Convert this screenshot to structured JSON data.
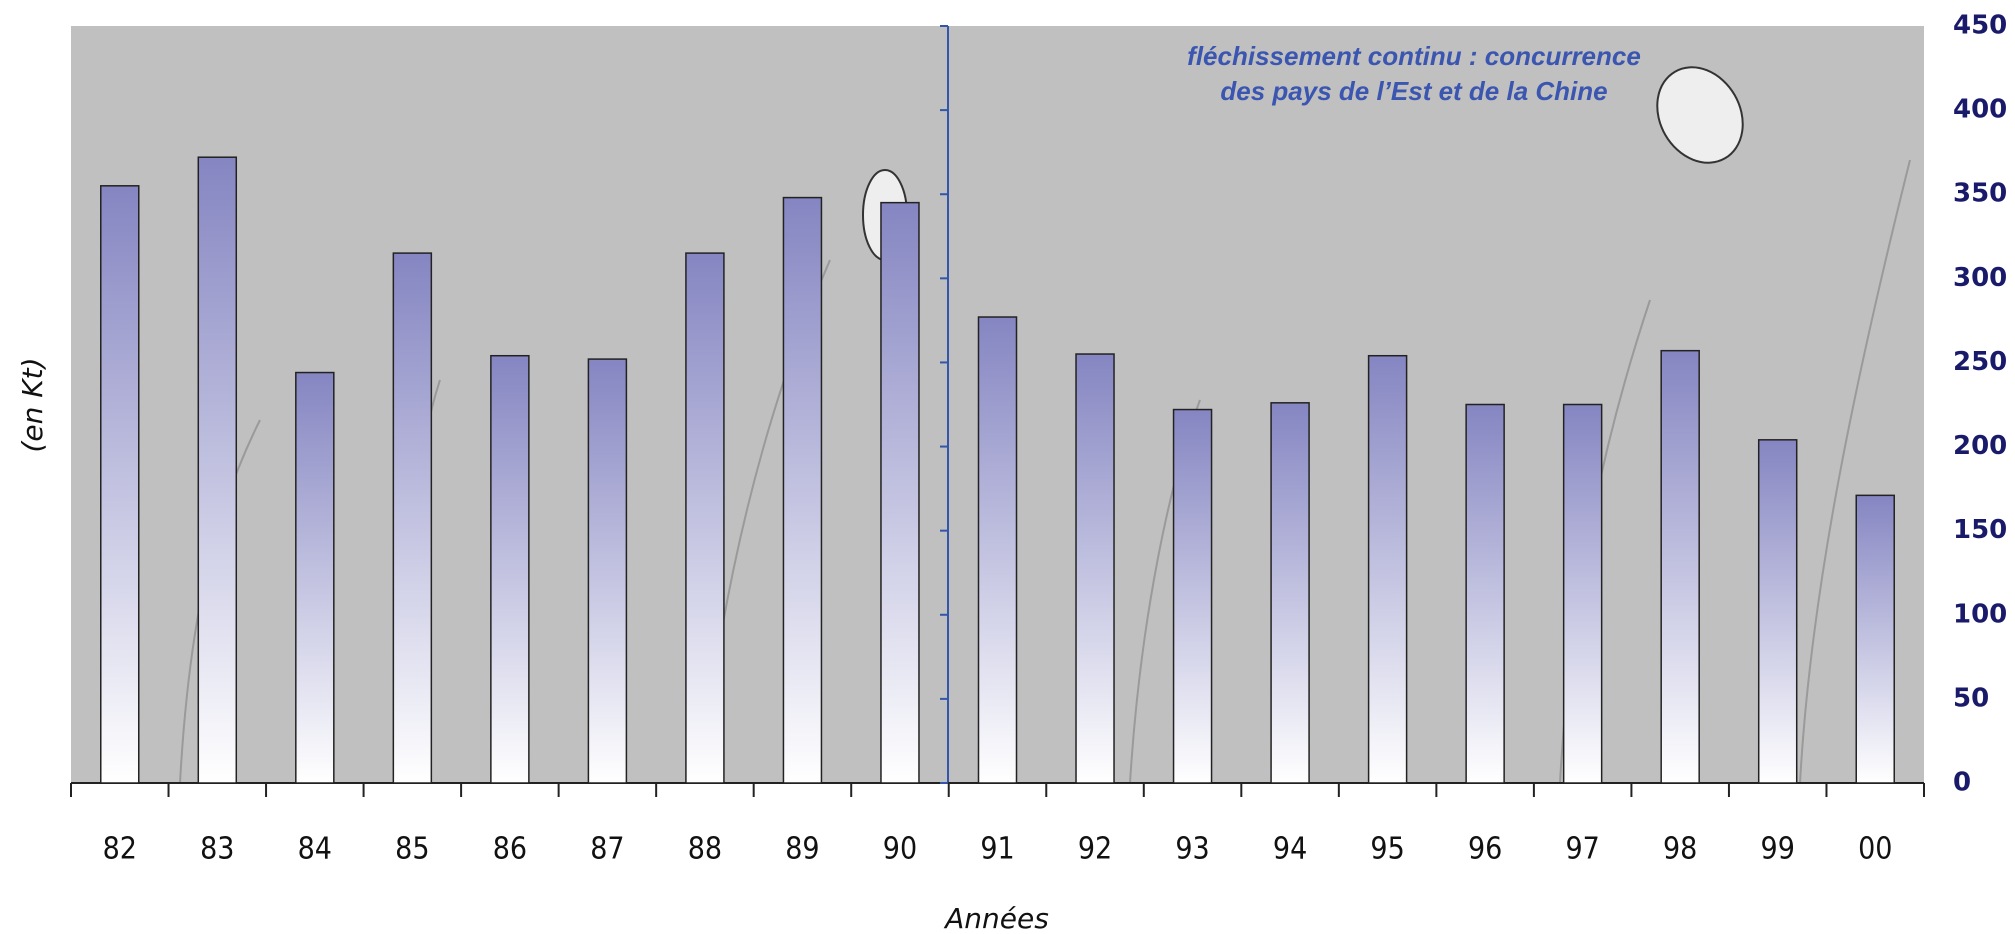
{
  "chart_data": {
    "type": "bar",
    "y_label": "(en Kt)",
    "x_label": "Années",
    "annotation": [
      "fléchissement continu : concurrence",
      "des pays de l’Est et de la Chine"
    ],
    "categories": [
      "82",
      "83",
      "84",
      "85",
      "86",
      "87",
      "88",
      "89",
      "90",
      "91",
      "92",
      "93",
      "94",
      "95",
      "96",
      "97",
      "98",
      "99",
      "00"
    ],
    "values": [
      355,
      372,
      244,
      315,
      254,
      252,
      315,
      348,
      345,
      277,
      255,
      222,
      226,
      254,
      225,
      225,
      257,
      204,
      171
    ],
    "color": "#8585c2",
    "ylim": [
      0,
      450
    ],
    "yticks": [
      0,
      50,
      100,
      150,
      200,
      250,
      300,
      350,
      400,
      450
    ]
  }
}
